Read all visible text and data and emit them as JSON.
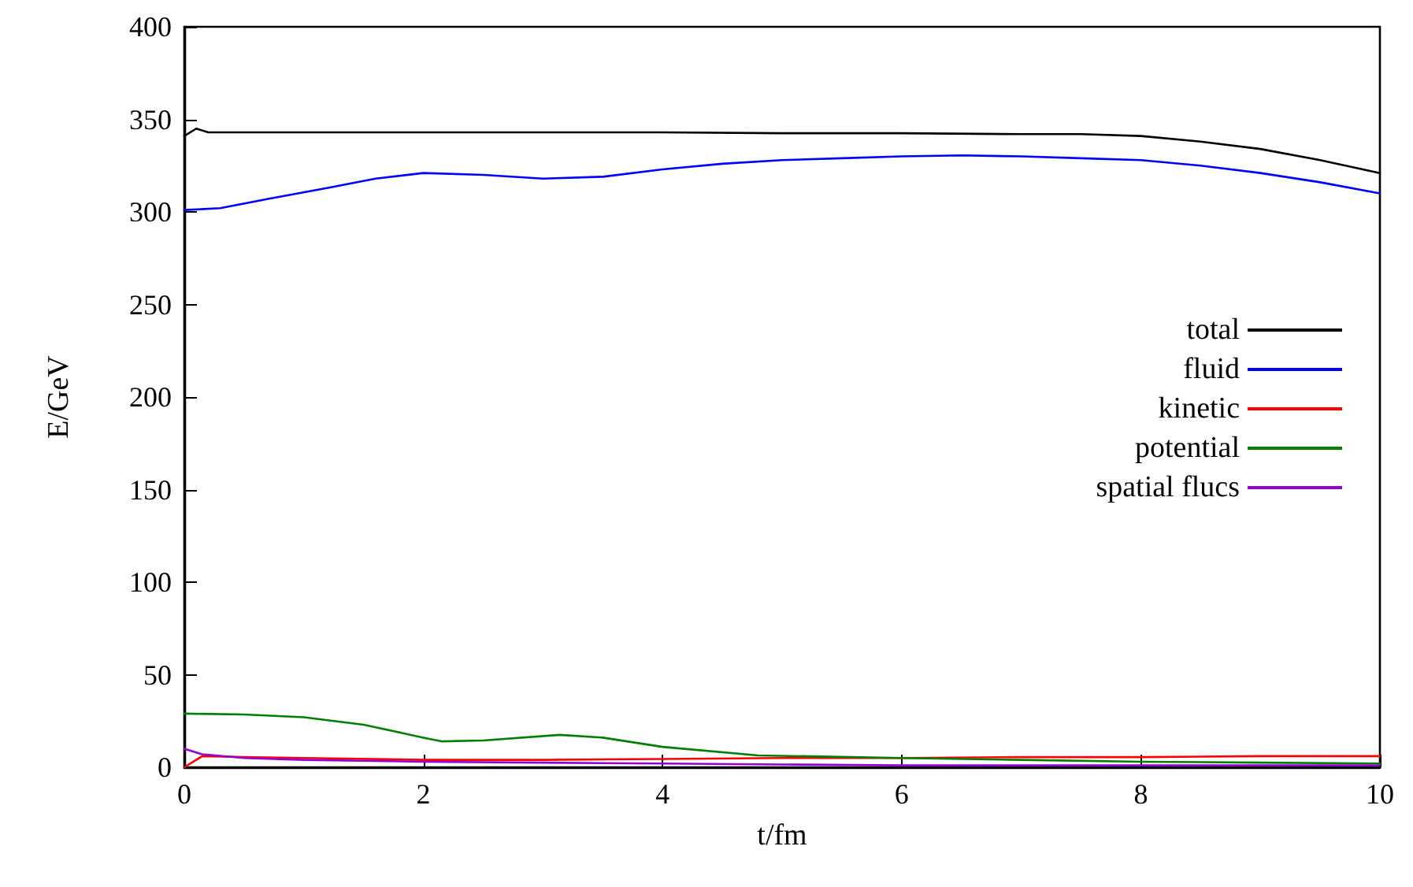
{
  "chart_data": {
    "type": "line",
    "xlabel": "t/fm",
    "ylabel": "E/GeV",
    "xlim": [
      0,
      10
    ],
    "xticks": [
      0,
      2,
      4,
      6,
      8,
      10
    ],
    "ylim": [
      0,
      400
    ],
    "yticks": [
      0,
      50,
      100,
      150,
      200,
      250,
      300,
      350,
      400
    ],
    "grid": false,
    "legend": "right",
    "marker": "none",
    "line_style": "solid",
    "series": [
      {
        "name": "total",
        "color": "#000000",
        "x": [
          0,
          0.1,
          0.2,
          0.5,
          1,
          2,
          3,
          4,
          5,
          6,
          7,
          7.5,
          8,
          8.5,
          9,
          9.5,
          10
        ],
        "values": [
          341,
          345,
          343,
          343,
          343,
          343,
          343,
          343,
          342.5,
          342.5,
          342,
          342,
          341,
          338,
          334,
          328,
          321
        ]
      },
      {
        "name": "fluid",
        "color": "#0000ff",
        "x": [
          0,
          0.3,
          0.7,
          1.2,
          1.6,
          2,
          2.5,
          3,
          3.5,
          4,
          4.5,
          5,
          5.5,
          6,
          6.5,
          7,
          7.5,
          8,
          8.5,
          9,
          9.5,
          10
        ],
        "values": [
          301,
          302,
          307,
          313,
          318,
          321,
          320,
          318,
          319,
          323,
          326,
          328,
          329,
          330,
          330.5,
          330,
          329,
          328,
          325,
          321,
          316,
          310
        ]
      },
      {
        "name": "kinetic",
        "color": "#ff0000",
        "x": [
          0,
          0.15,
          0.5,
          1,
          2,
          3,
          4,
          5,
          6,
          7,
          8,
          9,
          10
        ],
        "values": [
          0,
          6,
          5.5,
          5,
          4,
          4,
          4.5,
          5,
          5,
          5.5,
          5.5,
          6,
          6
        ]
      },
      {
        "name": "potential",
        "color": "#008000",
        "x": [
          0,
          0.5,
          1,
          1.5,
          2,
          2.15,
          2.5,
          3.14,
          3.5,
          4,
          4.8,
          6,
          7,
          8,
          9,
          10
        ],
        "values": [
          29,
          28.5,
          27,
          23,
          16,
          14,
          14.5,
          17.5,
          16,
          11,
          6.4,
          5,
          4,
          3,
          2.5,
          2
        ]
      },
      {
        "name": "spatial flucs",
        "color": "#9400d3",
        "x": [
          0,
          0.15,
          0.5,
          1,
          2,
          3,
          4,
          5,
          6,
          8,
          10
        ],
        "values": [
          10,
          7,
          5,
          4,
          3,
          2.5,
          2,
          1.5,
          1,
          1,
          1
        ]
      }
    ]
  }
}
